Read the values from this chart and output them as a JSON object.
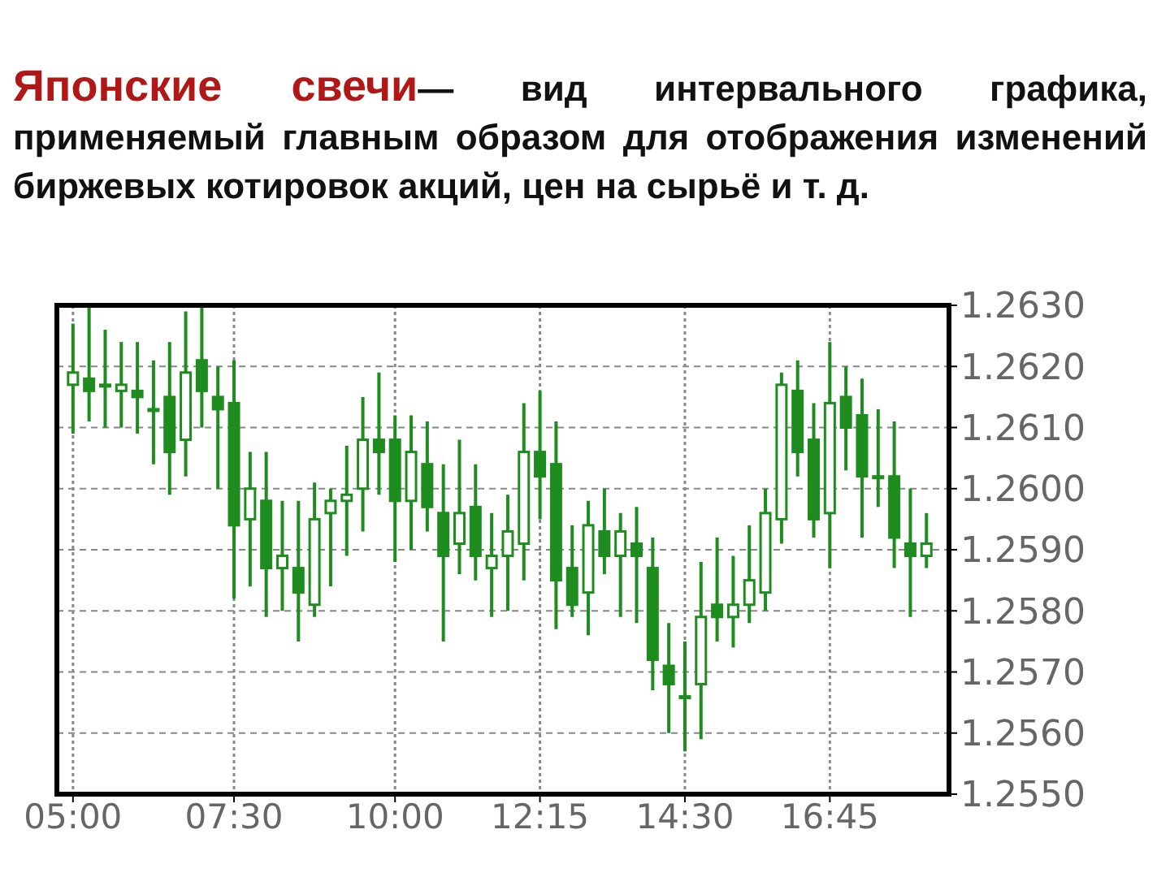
{
  "chart_data": {
    "type": "candlestick",
    "title": "Японские свечи",
    "subtitle": "— вид интервального графика, применяемый главным образом для отображения изменений биржевых котировок акций, цен на сырьё и т. д.",
    "color": "#1e8c1e",
    "grid": true,
    "x": [
      5,
      5.25,
      5.5,
      5.75,
      6,
      6.25,
      6.5,
      6.75,
      7,
      7.25,
      7.5,
      7.75,
      8,
      8.25,
      8.5,
      8.75,
      9,
      9.25,
      9.5,
      9.75,
      10,
      10.25,
      10.5,
      10.75,
      11,
      11.25,
      11.5,
      11.75,
      12,
      12.25,
      12.5,
      12.75,
      13,
      13.25,
      13.5,
      13.75,
      14,
      14.25,
      14.5,
      14.75,
      15,
      15.25,
      15.5,
      15.75,
      16,
      16.25,
      16.5,
      16.75,
      17,
      17.25,
      17.5,
      17.75,
      18,
      18.25
    ],
    "ohlc": [
      [
        1.2617,
        1.2627,
        1.2609,
        1.2619
      ],
      [
        1.2618,
        1.263,
        1.2611,
        1.2616
      ],
      [
        1.2617,
        1.2626,
        1.261,
        1.2617
      ],
      [
        1.2616,
        1.2624,
        1.261,
        1.2617
      ],
      [
        1.2616,
        1.2624,
        1.2609,
        1.2615
      ],
      [
        1.2613,
        1.2621,
        1.2604,
        1.2613
      ],
      [
        1.2615,
        1.2624,
        1.2599,
        1.2606
      ],
      [
        1.2608,
        1.2629,
        1.2602,
        1.2619
      ],
      [
        1.2621,
        1.263,
        1.261,
        1.2616
      ],
      [
        1.2615,
        1.262,
        1.26,
        1.2613
      ],
      [
        1.2614,
        1.2621,
        1.2582,
        1.2594
      ],
      [
        1.2595,
        1.2606,
        1.2584,
        1.26
      ],
      [
        1.2598,
        1.2606,
        1.2579,
        1.2587
      ],
      [
        1.2587,
        1.2598,
        1.258,
        1.2589
      ],
      [
        1.2587,
        1.2598,
        1.2575,
        1.2583
      ],
      [
        1.2581,
        1.2601,
        1.2579,
        1.2595
      ],
      [
        1.2596,
        1.26,
        1.2584,
        1.2598
      ],
      [
        1.2598,
        1.2607,
        1.2589,
        1.2599
      ],
      [
        1.26,
        1.2615,
        1.2593,
        1.2608
      ],
      [
        1.2608,
        1.2619,
        1.2599,
        1.2606
      ],
      [
        1.2608,
        1.2612,
        1.2588,
        1.2598
      ],
      [
        1.2598,
        1.2612,
        1.259,
        1.2606
      ],
      [
        1.2604,
        1.2611,
        1.2593,
        1.2597
      ],
      [
        1.2596,
        1.2604,
        1.2575,
        1.2589
      ],
      [
        1.2591,
        1.2608,
        1.2586,
        1.2596
      ],
      [
        1.2597,
        1.2604,
        1.2585,
        1.2589
      ],
      [
        1.2587,
        1.2596,
        1.2579,
        1.2589
      ],
      [
        1.2589,
        1.2599,
        1.258,
        1.2593
      ],
      [
        1.2591,
        1.2614,
        1.2585,
        1.2606
      ],
      [
        1.2606,
        1.2616,
        1.2595,
        1.2602
      ],
      [
        1.2604,
        1.2611,
        1.2577,
        1.2585
      ],
      [
        1.2587,
        1.2594,
        1.2579,
        1.2581
      ],
      [
        1.2583,
        1.2598,
        1.2576,
        1.2594
      ],
      [
        1.2593,
        1.26,
        1.2586,
        1.2589
      ],
      [
        1.2589,
        1.2596,
        1.2579,
        1.2593
      ],
      [
        1.2591,
        1.2597,
        1.2578,
        1.2589
      ],
      [
        1.2587,
        1.2592,
        1.2567,
        1.2572
      ],
      [
        1.2571,
        1.2578,
        1.256,
        1.2568
      ],
      [
        1.2566,
        1.2575,
        1.2557,
        1.2566
      ],
      [
        1.2568,
        1.2588,
        1.2559,
        1.2579
      ],
      [
        1.2581,
        1.2592,
        1.2575,
        1.2579
      ],
      [
        1.2579,
        1.2589,
        1.2574,
        1.2581
      ],
      [
        1.2581,
        1.2594,
        1.2578,
        1.2585
      ],
      [
        1.2583,
        1.26,
        1.258,
        1.2596
      ],
      [
        1.2595,
        1.2619,
        1.2591,
        1.2617
      ],
      [
        1.2616,
        1.2621,
        1.2602,
        1.2606
      ],
      [
        1.2608,
        1.2614,
        1.2592,
        1.2595
      ],
      [
        1.2596,
        1.2624,
        1.2587,
        1.2614
      ],
      [
        1.2615,
        1.262,
        1.2603,
        1.261
      ],
      [
        1.2612,
        1.2618,
        1.2592,
        1.2602
      ],
      [
        1.2602,
        1.2613,
        1.2597,
        1.2602
      ],
      [
        1.2602,
        1.2611,
        1.2587,
        1.2592
      ],
      [
        1.2591,
        1.26,
        1.2579,
        1.2589
      ],
      [
        1.2589,
        1.2596,
        1.2587,
        1.2591
      ]
    ],
    "xlim": [
      4.75,
      18.6
    ],
    "ylim": [
      1.255,
      1.263
    ],
    "xticks": [
      {
        "value": 5,
        "label": "05:00"
      },
      {
        "value": 7.5,
        "label": "07:30"
      },
      {
        "value": 10,
        "label": "10:00"
      },
      {
        "value": 12.25,
        "label": "12:15"
      },
      {
        "value": 14.5,
        "label": "14:30"
      },
      {
        "value": 16.75,
        "label": "16:45"
      }
    ],
    "yticks": [
      {
        "value": 1.255,
        "label": "1.2550"
      },
      {
        "value": 1.256,
        "label": "1.2560"
      },
      {
        "value": 1.257,
        "label": "1.2570"
      },
      {
        "value": 1.258,
        "label": "1.2580"
      },
      {
        "value": 1.259,
        "label": "1.2590"
      },
      {
        "value": 1.26,
        "label": "1.2600"
      },
      {
        "value": 1.261,
        "label": "1.2610"
      },
      {
        "value": 1.262,
        "label": "1.2620"
      },
      {
        "value": 1.263,
        "label": "1.2630"
      }
    ]
  }
}
